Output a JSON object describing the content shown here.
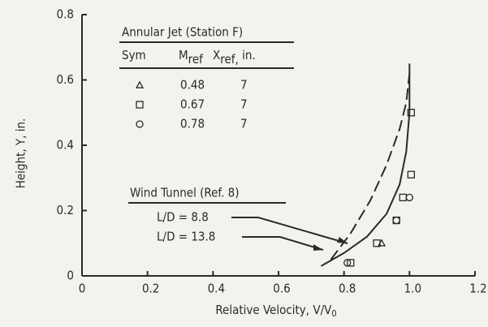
{
  "chart_data": {
    "type": "scatter",
    "xlabel": {
      "text": "Relative Velocity, V/V",
      "sub": "0"
    },
    "ylabel": "Height, Y, in.",
    "xlim": [
      0,
      1.2
    ],
    "ylim": [
      0,
      0.8
    ],
    "xticks": [
      0,
      {
        "value": 0.2,
        "label": "0.2"
      },
      {
        "value": 0.4,
        "label": "0.4"
      },
      {
        "value": 0.6,
        "label": "0.6"
      },
      {
        "value": 0.8,
        "label": "0.8"
      },
      {
        "value": 1.0,
        "label": "1.0"
      },
      {
        "value": 1.2,
        "label": "1.2"
      }
    ],
    "yticks": [
      0,
      {
        "value": 0.2,
        "label": "0.2"
      },
      {
        "value": 0.4,
        "label": "0.4"
      },
      {
        "value": 0.6,
        "label": "0.6"
      },
      {
        "value": 0.8,
        "label": "0.8"
      }
    ],
    "legend": {
      "title": "Annular Jet (Station F)",
      "headers": [
        {
          "text": "Sym"
        },
        {
          "text": "M",
          "sub": "ref"
        },
        {
          "text": "X",
          "sub": "ref,",
          "after": " in."
        }
      ],
      "x_ref": [
        "7",
        "7",
        "7"
      ]
    },
    "series": [
      {
        "name": "0.48",
        "marker": "triangle",
        "x": [
          0.915
        ],
        "values": [
          0.1
        ]
      },
      {
        "name": "0.67",
        "marker": "square",
        "x": [
          0.82,
          0.9,
          0.96,
          0.98,
          1.005,
          1.005
        ],
        "values": [
          0.04,
          0.1,
          0.17,
          0.24,
          0.31,
          0.5
        ]
      },
      {
        "name": "0.78",
        "marker": "circle",
        "x": [
          0.81,
          0.96,
          1.0
        ],
        "values": [
          0.04,
          0.17,
          0.24
        ]
      }
    ],
    "curves_title": "Wind Tunnel (Ref. 8)",
    "curves": [
      {
        "name": "L/D = 8.8",
        "dash": true,
        "x": [
          0.76,
          0.82,
          0.88,
          0.93,
          0.97,
          0.99,
          1.0
        ],
        "values": [
          0.05,
          0.13,
          0.23,
          0.34,
          0.45,
          0.53,
          0.62
        ]
      },
      {
        "name": "L/D = 13.8",
        "dash": false,
        "x": [
          0.73,
          0.8,
          0.87,
          0.93,
          0.97,
          0.99,
          1.0,
          1.0
        ],
        "values": [
          0.03,
          0.07,
          0.12,
          0.19,
          0.28,
          0.38,
          0.5,
          0.65
        ]
      }
    ]
  }
}
